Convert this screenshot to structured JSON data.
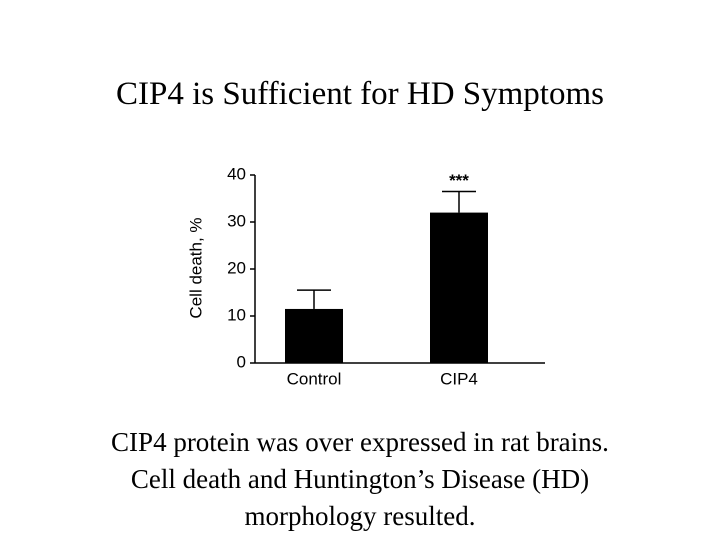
{
  "title": "CIP4 is Sufficient for HD Symptoms",
  "caption": [
    "CIP4 protein was over expressed in rat brains.",
    "Cell death and Huntington’s Disease (HD)",
    "morphology resulted."
  ],
  "chart_data": {
    "type": "bar",
    "categories": [
      "Control",
      "CIP4"
    ],
    "values": [
      11.5,
      32
    ],
    "errors": [
      4,
      4.5
    ],
    "color": "#000000",
    "y_label": "Cell death, %",
    "annotation": "***",
    "ylim": [
      0,
      40
    ],
    "yticks": [
      0,
      10,
      20,
      30,
      40
    ],
    "grid": false
  }
}
